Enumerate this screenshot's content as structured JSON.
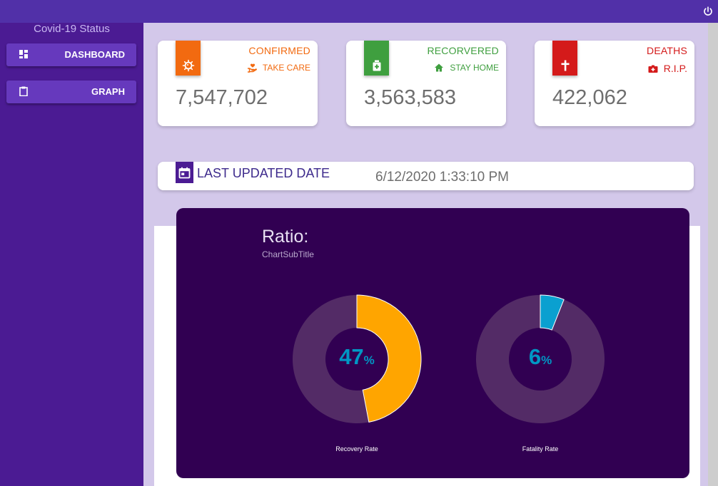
{
  "topbar": {
    "power_icon": "power-icon"
  },
  "sidebar": {
    "title": "Covid-19 Status",
    "items": [
      {
        "label": "DASHBOARD",
        "icon": "dashboard-icon"
      },
      {
        "label": "GRAPH",
        "icon": "clipboard-icon"
      }
    ]
  },
  "cards": [
    {
      "title": "CONFIRMED",
      "sub": "TAKE CARE",
      "value": "7,547,702",
      "color": "#f26a10",
      "icon": "virus-icon",
      "sub_icon": "hand-heart-icon"
    },
    {
      "title": "RECORVERED",
      "sub": "STAY HOME",
      "value": "3,563,583",
      "color": "#3f9f3f",
      "icon": "hospital-icon",
      "sub_icon": "home-icon"
    },
    {
      "title": "DEATHS",
      "sub": "R.I.P.",
      "value": "422,062",
      "color": "#d41a1a",
      "icon": "cross-icon",
      "sub_icon": "medical-bag-icon"
    }
  ],
  "updated": {
    "label": "LAST UPDATED DATE",
    "value": "6/12/2020 1:33:10 PM",
    "icon": "calendar-icon"
  },
  "chart": {
    "title": "Ratio:",
    "subtitle": "ChartSubTitle"
  },
  "chart_data": [
    {
      "type": "pie",
      "title": "Ratio:",
      "subtitle": "ChartSubTitle",
      "label": "Recovery Rate",
      "center_value": "47",
      "center_unit": "%",
      "values": [
        47,
        53
      ],
      "colors": [
        "#ffa500",
        "#532b66"
      ]
    },
    {
      "type": "pie",
      "label": "Fatality  Rate",
      "center_value": "6",
      "center_unit": "%",
      "values": [
        6,
        94
      ],
      "colors": [
        "#0aa0d0",
        "#532b66"
      ]
    }
  ]
}
